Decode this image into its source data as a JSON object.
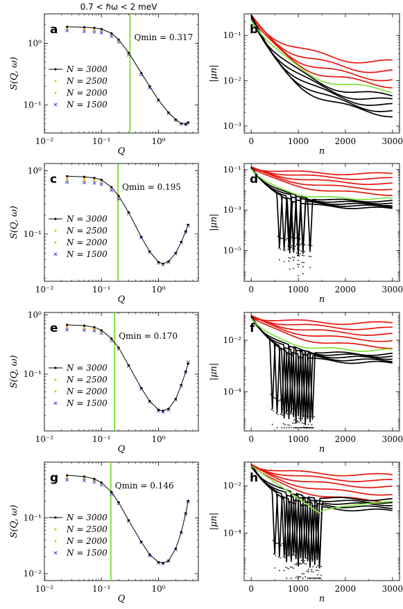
{
  "header": "0.7 < ℏω < 2 meV",
  "styles": {
    "n3000": "#000000",
    "n2500": "#f5a623",
    "n2000": "#f5a623",
    "n1500": "#1f2fd0",
    "qmin_line": "#7fe23a",
    "mu_black": "#000000",
    "mu_red": "#e8170f",
    "mu_green": "#7fe23a"
  },
  "chart_data": [
    {
      "panel": "a",
      "type": "scatter",
      "xscale": "log",
      "yscale": "log",
      "xlabel": "Q",
      "ylabel": "S(Q, ω)",
      "xlim": [
        0.01,
        5
      ],
      "ylim": [
        0.035,
        3.0
      ],
      "xticks": [
        {
          "v": 0.01,
          "t": "10⁻²"
        },
        {
          "v": 0.1,
          "t": "10⁻¹"
        },
        {
          "v": 1,
          "t": "10⁰"
        }
      ],
      "yticks": [
        {
          "v": 1,
          "t": "10⁰"
        },
        {
          "v": 0.1,
          "t": "10⁻¹"
        }
      ],
      "qmin": 0.317,
      "qmin_label": "Qmin = 0.317",
      "legend": [
        "N = 3000",
        "N = 2500",
        "N = 2000",
        "N = 1500"
      ],
      "series": {
        "x": [
          0.025,
          0.05,
          0.075,
          0.1,
          0.15,
          0.2,
          0.3,
          0.5,
          0.7,
          1.0,
          1.5,
          2.0,
          2.5,
          3.0,
          3.3
        ],
        "n3000": [
          1.85,
          1.82,
          1.78,
          1.7,
          1.45,
          1.15,
          0.7,
          0.33,
          0.2,
          0.12,
          0.075,
          0.058,
          0.05,
          0.049,
          0.052
        ],
        "n2500": [
          1.78,
          1.74,
          1.7,
          1.63,
          1.41,
          1.12,
          0.68,
          0.32,
          0.2,
          0.12,
          0.074,
          0.057,
          0.049,
          0.049,
          0.051
        ],
        "n2000": [
          1.72,
          1.68,
          1.64,
          1.58,
          1.38,
          1.1,
          0.67,
          0.32,
          0.2,
          0.12,
          0.074,
          0.057,
          0.049,
          0.048,
          0.05
        ],
        "n1500": [
          1.6,
          1.55,
          1.52,
          1.48,
          1.3,
          1.05,
          0.65,
          0.31,
          0.19,
          0.118,
          0.073,
          0.056,
          0.049,
          0.048,
          0.05
        ]
      }
    },
    {
      "panel": "b",
      "type": "line",
      "xscale": "linear",
      "yscale": "log",
      "xlabel": "n",
      "ylabel": "|μn|",
      "xlim": [
        -150,
        3150
      ],
      "ylim": [
        0.0007,
        0.3
      ],
      "xticks": [
        {
          "v": 0,
          "t": "0"
        },
        {
          "v": 1000,
          "t": "1000"
        },
        {
          "v": 2000,
          "t": "2000"
        },
        {
          "v": 3000,
          "t": "3000"
        }
      ],
      "yticks": [
        {
          "v": 0.1,
          "t": "10⁻¹"
        },
        {
          "v": 0.01,
          "t": "10⁻²"
        },
        {
          "v": 0.001,
          "t": "10⁻³"
        }
      ],
      "mu0": 0.25,
      "log_floor": -4,
      "lines": [
        {
          "color": "mu_black",
          "kind": "decay",
          "end": 0.0018,
          "osc": 0
        },
        {
          "color": "mu_black",
          "kind": "decay",
          "end": 0.0022,
          "osc": 0
        },
        {
          "color": "mu_black",
          "kind": "decay",
          "end": 0.0028,
          "osc": 0
        },
        {
          "color": "mu_black",
          "kind": "decay",
          "end": 0.0035,
          "osc": 0
        },
        {
          "color": "mu_black",
          "kind": "decay",
          "end": 0.0045,
          "osc": 0
        },
        {
          "color": "mu_green",
          "kind": "decay",
          "end": 0.006,
          "osc": 0
        },
        {
          "color": "mu_red",
          "kind": "decay",
          "end": 0.008,
          "osc": 0
        },
        {
          "color": "mu_red",
          "kind": "decay",
          "end": 0.011,
          "osc": 0
        },
        {
          "color": "mu_red",
          "kind": "decay",
          "end": 0.016,
          "osc": 0
        },
        {
          "color": "mu_red",
          "kind": "decay",
          "end": 0.025,
          "osc": 0
        }
      ]
    },
    {
      "panel": "c",
      "type": "scatter",
      "xscale": "log",
      "yscale": "log",
      "xlabel": "Q",
      "ylabel": "S(Q, ω)",
      "xlim": [
        0.01,
        5
      ],
      "ylim": [
        0.018,
        1.3
      ],
      "xticks": [
        {
          "v": 0.01,
          "t": "10⁻²"
        },
        {
          "v": 0.1,
          "t": "10⁻¹"
        },
        {
          "v": 1,
          "t": "10⁰"
        }
      ],
      "yticks": [
        {
          "v": 1,
          "t": "10⁰"
        },
        {
          "v": 0.1,
          "t": "10⁻¹"
        }
      ],
      "qmin": 0.195,
      "qmin_label": "Qmin = 0.195",
      "legend": [
        "N = 3000",
        "N = 2500",
        "N = 2000",
        "N = 1500"
      ],
      "series": {
        "x": [
          0.025,
          0.05,
          0.075,
          0.1,
          0.15,
          0.2,
          0.3,
          0.5,
          0.7,
          1.0,
          1.2,
          1.5,
          2.0,
          2.5,
          3.0,
          3.3
        ],
        "n3000": [
          0.82,
          0.8,
          0.77,
          0.72,
          0.55,
          0.4,
          0.22,
          0.09,
          0.053,
          0.036,
          0.034,
          0.037,
          0.05,
          0.075,
          0.11,
          0.14
        ],
        "n2500": [
          0.76,
          0.75,
          0.73,
          0.69,
          0.53,
          0.39,
          0.22,
          0.09,
          0.053,
          0.036,
          0.034,
          0.037,
          0.05,
          0.074,
          0.11,
          0.138
        ],
        "n2000": [
          0.72,
          0.71,
          0.7,
          0.66,
          0.52,
          0.38,
          0.215,
          0.089,
          0.052,
          0.035,
          0.033,
          0.036,
          0.049,
          0.074,
          0.11,
          0.137
        ],
        "n1500": [
          0.66,
          0.65,
          0.64,
          0.61,
          0.49,
          0.36,
          0.21,
          0.088,
          0.052,
          0.035,
          0.033,
          0.036,
          0.049,
          0.073,
          0.108,
          0.135
        ]
      }
    },
    {
      "panel": "d",
      "type": "line",
      "xscale": "linear",
      "yscale": "log",
      "xlabel": "n",
      "ylabel": "|μn|",
      "xlim": [
        -150,
        3150
      ],
      "ylim": [
        3e-07,
        0.2
      ],
      "xticks": [
        {
          "v": 0,
          "t": "0"
        },
        {
          "v": 1000,
          "t": "1000"
        },
        {
          "v": 2000,
          "t": "2000"
        },
        {
          "v": 3000,
          "t": "3000"
        }
      ],
      "yticks": [
        {
          "v": 0.1,
          "t": "10⁻¹"
        },
        {
          "v": 0.001,
          "t": "10⁻³"
        },
        {
          "v": 1e-05,
          "t": "10⁻⁵"
        }
      ],
      "mu0": 0.12,
      "log_floor": -6.4,
      "lines": [
        {
          "color": "mu_black",
          "kind": "osc",
          "end": 0.0012,
          "zeros": [
            600,
            820,
            1000
          ]
        },
        {
          "color": "mu_black",
          "kind": "osc",
          "end": 0.0015,
          "zeros": [
            700,
            900,
            1100
          ]
        },
        {
          "color": "mu_black",
          "kind": "osc",
          "end": 0.0018,
          "zeros": [
            800,
            1000
          ]
        },
        {
          "color": "mu_black",
          "kind": "osc",
          "end": 0.0022,
          "zeros": [
            900,
            1100
          ]
        },
        {
          "color": "mu_black",
          "kind": "osc",
          "end": 0.0027,
          "zeros": [
            1000,
            1250
          ]
        },
        {
          "color": "mu_green",
          "kind": "osc",
          "end": 0.0035,
          "zeros": []
        },
        {
          "color": "mu_red",
          "kind": "decay",
          "end": 0.006,
          "osc": 0
        },
        {
          "color": "mu_red",
          "kind": "decay",
          "end": 0.011,
          "osc": 0
        },
        {
          "color": "mu_red",
          "kind": "decay",
          "end": 0.02,
          "osc": 0
        },
        {
          "color": "mu_red",
          "kind": "decay",
          "end": 0.035,
          "osc": 0
        },
        {
          "color": "mu_red",
          "kind": "decay",
          "end": 0.06,
          "osc": 0
        }
      ]
    },
    {
      "panel": "e",
      "type": "scatter",
      "xscale": "log",
      "yscale": "log",
      "xlabel": "Q",
      "ylabel": "S(Q, ω)",
      "xlim": [
        0.01,
        5
      ],
      "ylim": [
        0.011,
        1.1
      ],
      "xticks": [
        {
          "v": 0.01,
          "t": "10⁻²"
        },
        {
          "v": 0.1,
          "t": "10⁻¹"
        },
        {
          "v": 1,
          "t": "10⁰"
        }
      ],
      "yticks": [
        {
          "v": 1,
          "t": "10⁰"
        },
        {
          "v": 0.1,
          "t": "10⁻¹"
        }
      ],
      "qmin": 0.17,
      "qmin_label": "Qmin = 0.170",
      "legend": [
        "N = 3000",
        "N = 2500",
        "N = 2000",
        "N = 1500"
      ],
      "series": {
        "x": [
          0.025,
          0.05,
          0.075,
          0.1,
          0.15,
          0.2,
          0.3,
          0.5,
          0.7,
          1.0,
          1.2,
          1.5,
          2.0,
          2.5,
          3.0,
          3.3
        ],
        "n3000": [
          0.68,
          0.66,
          0.62,
          0.55,
          0.4,
          0.28,
          0.14,
          0.058,
          0.035,
          0.025,
          0.024,
          0.026,
          0.038,
          0.065,
          0.11,
          0.15
        ],
        "n2500": [
          0.64,
          0.62,
          0.6,
          0.53,
          0.39,
          0.275,
          0.14,
          0.057,
          0.035,
          0.025,
          0.024,
          0.026,
          0.038,
          0.064,
          0.11,
          0.155
        ],
        "n2000": [
          0.6,
          0.59,
          0.57,
          0.51,
          0.38,
          0.27,
          0.138,
          0.057,
          0.034,
          0.025,
          0.024,
          0.026,
          0.038,
          0.064,
          0.11,
          0.155
        ],
        "n1500": [
          0.56,
          0.55,
          0.54,
          0.49,
          0.37,
          0.265,
          0.136,
          0.056,
          0.034,
          0.024,
          0.023,
          0.025,
          0.037,
          0.063,
          0.108,
          0.16
        ]
      }
    },
    {
      "panel": "f",
      "type": "line",
      "xscale": "linear",
      "yscale": "log",
      "xlabel": "n",
      "ylabel": "|μn|",
      "xlim": [
        -150,
        3150
      ],
      "ylim": [
        3e-06,
        0.12
      ],
      "xticks": [
        {
          "v": 0,
          "t": "0"
        },
        {
          "v": 1000,
          "t": "1000"
        },
        {
          "v": 2000,
          "t": "2000"
        },
        {
          "v": 3000,
          "t": "3000"
        }
      ],
      "yticks": [
        {
          "v": 0.01,
          "t": "10⁻²"
        },
        {
          "v": 0.0001,
          "t": "10⁻⁴"
        }
      ],
      "mu0": 0.08,
      "log_floor": -5.4,
      "lines": [
        {
          "color": "mu_black",
          "kind": "osc",
          "end": 0.0013,
          "zeros": [
            450,
            700,
            950,
            1150
          ]
        },
        {
          "color": "mu_black",
          "kind": "osc",
          "end": 0.0016,
          "zeros": [
            550,
            800,
            1050,
            1250
          ]
        },
        {
          "color": "mu_black",
          "kind": "osc",
          "end": 0.002,
          "zeros": [
            650,
            900,
            1150
          ]
        },
        {
          "color": "mu_black",
          "kind": "osc",
          "end": 0.0024,
          "zeros": [
            750,
            1000,
            1200
          ]
        },
        {
          "color": "mu_black",
          "kind": "osc",
          "end": 0.0028,
          "zeros": [
            850,
            1100,
            1300
          ]
        },
        {
          "color": "mu_green",
          "kind": "osc",
          "end": 0.004,
          "zeros": []
        },
        {
          "color": "mu_red",
          "kind": "decay",
          "end": 0.0055,
          "osc": 0
        },
        {
          "color": "mu_red",
          "kind": "decay",
          "end": 0.01,
          "osc": 0
        },
        {
          "color": "mu_red",
          "kind": "decay",
          "end": 0.017,
          "osc": 0
        },
        {
          "color": "mu_red",
          "kind": "decay",
          "end": 0.028,
          "osc": 0
        },
        {
          "color": "mu_red",
          "kind": "decay",
          "end": 0.045,
          "osc": 0
        }
      ]
    },
    {
      "panel": "g",
      "type": "scatter",
      "xscale": "log",
      "yscale": "log",
      "xlabel": "Q",
      "ylabel": "S(Q, ω)",
      "xlim": [
        0.01,
        5
      ],
      "ylim": [
        0.0075,
        1.0
      ],
      "xticks": [
        {
          "v": 0.01,
          "t": "10⁻²"
        },
        {
          "v": 0.1,
          "t": "10⁻¹"
        },
        {
          "v": 1,
          "t": "10⁰"
        }
      ],
      "yticks": [
        {
          "v": 0.1,
          "t": "10⁻¹"
        },
        {
          "v": 0.01,
          "t": "10⁻²"
        }
      ],
      "qmin": 0.146,
      "qmin_label": "Qmin = 0.146",
      "legend": [
        "N = 3000",
        "N = 2500",
        "N = 2000",
        "N = 1500"
      ],
      "series": {
        "x": [
          0.025,
          0.05,
          0.075,
          0.1,
          0.15,
          0.2,
          0.3,
          0.5,
          0.7,
          1.0,
          1.2,
          1.5,
          2.0,
          2.5,
          3.0,
          3.3
        ],
        "n3000": [
          0.58,
          0.55,
          0.5,
          0.43,
          0.29,
          0.19,
          0.09,
          0.037,
          0.022,
          0.016,
          0.0155,
          0.017,
          0.028,
          0.055,
          0.12,
          0.2
        ],
        "n2500": [
          0.55,
          0.53,
          0.49,
          0.42,
          0.285,
          0.187,
          0.089,
          0.037,
          0.022,
          0.016,
          0.0155,
          0.017,
          0.028,
          0.055,
          0.12,
          0.2
        ],
        "n2000": [
          0.52,
          0.51,
          0.47,
          0.41,
          0.28,
          0.185,
          0.088,
          0.036,
          0.022,
          0.0158,
          0.0153,
          0.017,
          0.028,
          0.054,
          0.118,
          0.198
        ],
        "n1500": [
          0.48,
          0.47,
          0.44,
          0.39,
          0.27,
          0.18,
          0.087,
          0.036,
          0.021,
          0.0155,
          0.015,
          0.0168,
          0.027,
          0.054,
          0.117,
          0.196
        ]
      }
    },
    {
      "panel": "h",
      "type": "line",
      "xscale": "linear",
      "yscale": "log",
      "xlabel": "n",
      "ylabel": "|μn|",
      "xlim": [
        -150,
        3150
      ],
      "ylim": [
        1e-06,
        0.1
      ],
      "xticks": [
        {
          "v": 0,
          "t": "0"
        },
        {
          "v": 1000,
          "t": "1000"
        },
        {
          "v": 2000,
          "t": "2000"
        },
        {
          "v": 3000,
          "t": "3000"
        }
      ],
      "yticks": [
        {
          "v": 0.01,
          "t": "10⁻²"
        },
        {
          "v": 0.0001,
          "t": "10⁻⁴"
        }
      ],
      "mu0": 0.07,
      "log_floor": -5.9,
      "lines": [
        {
          "color": "mu_black",
          "kind": "osc",
          "end": 0.0009,
          "zeros": [
            500,
            750,
            1000,
            1250,
            1450
          ]
        },
        {
          "color": "mu_black",
          "kind": "osc",
          "end": 0.0012,
          "zeros": [
            600,
            850,
            1100,
            1350
          ]
        },
        {
          "color": "mu_black",
          "kind": "osc",
          "end": 0.0016,
          "zeros": [
            700,
            950,
            1200,
            1450
          ]
        },
        {
          "color": "mu_black",
          "kind": "osc",
          "end": 0.002,
          "zeros": [
            800,
            1050,
            1300
          ]
        },
        {
          "color": "mu_black",
          "kind": "osc",
          "end": 0.0026,
          "zeros": [
            900,
            1150,
            1400
          ]
        },
        {
          "color": "mu_green",
          "kind": "dip",
          "end": 0.0022,
          "dip_at": 1450,
          "dip_val": 0.0007
        },
        {
          "color": "mu_red",
          "kind": "decay",
          "end": 0.0022,
          "osc": 0
        },
        {
          "color": "mu_red",
          "kind": "decay",
          "end": 0.0045,
          "osc": 0
        },
        {
          "color": "mu_red",
          "kind": "decay",
          "end": 0.009,
          "osc": 0
        },
        {
          "color": "mu_red",
          "kind": "decay",
          "end": 0.016,
          "osc": 0
        },
        {
          "color": "mu_red",
          "kind": "decay",
          "end": 0.028,
          "osc": 0
        }
      ]
    }
  ]
}
